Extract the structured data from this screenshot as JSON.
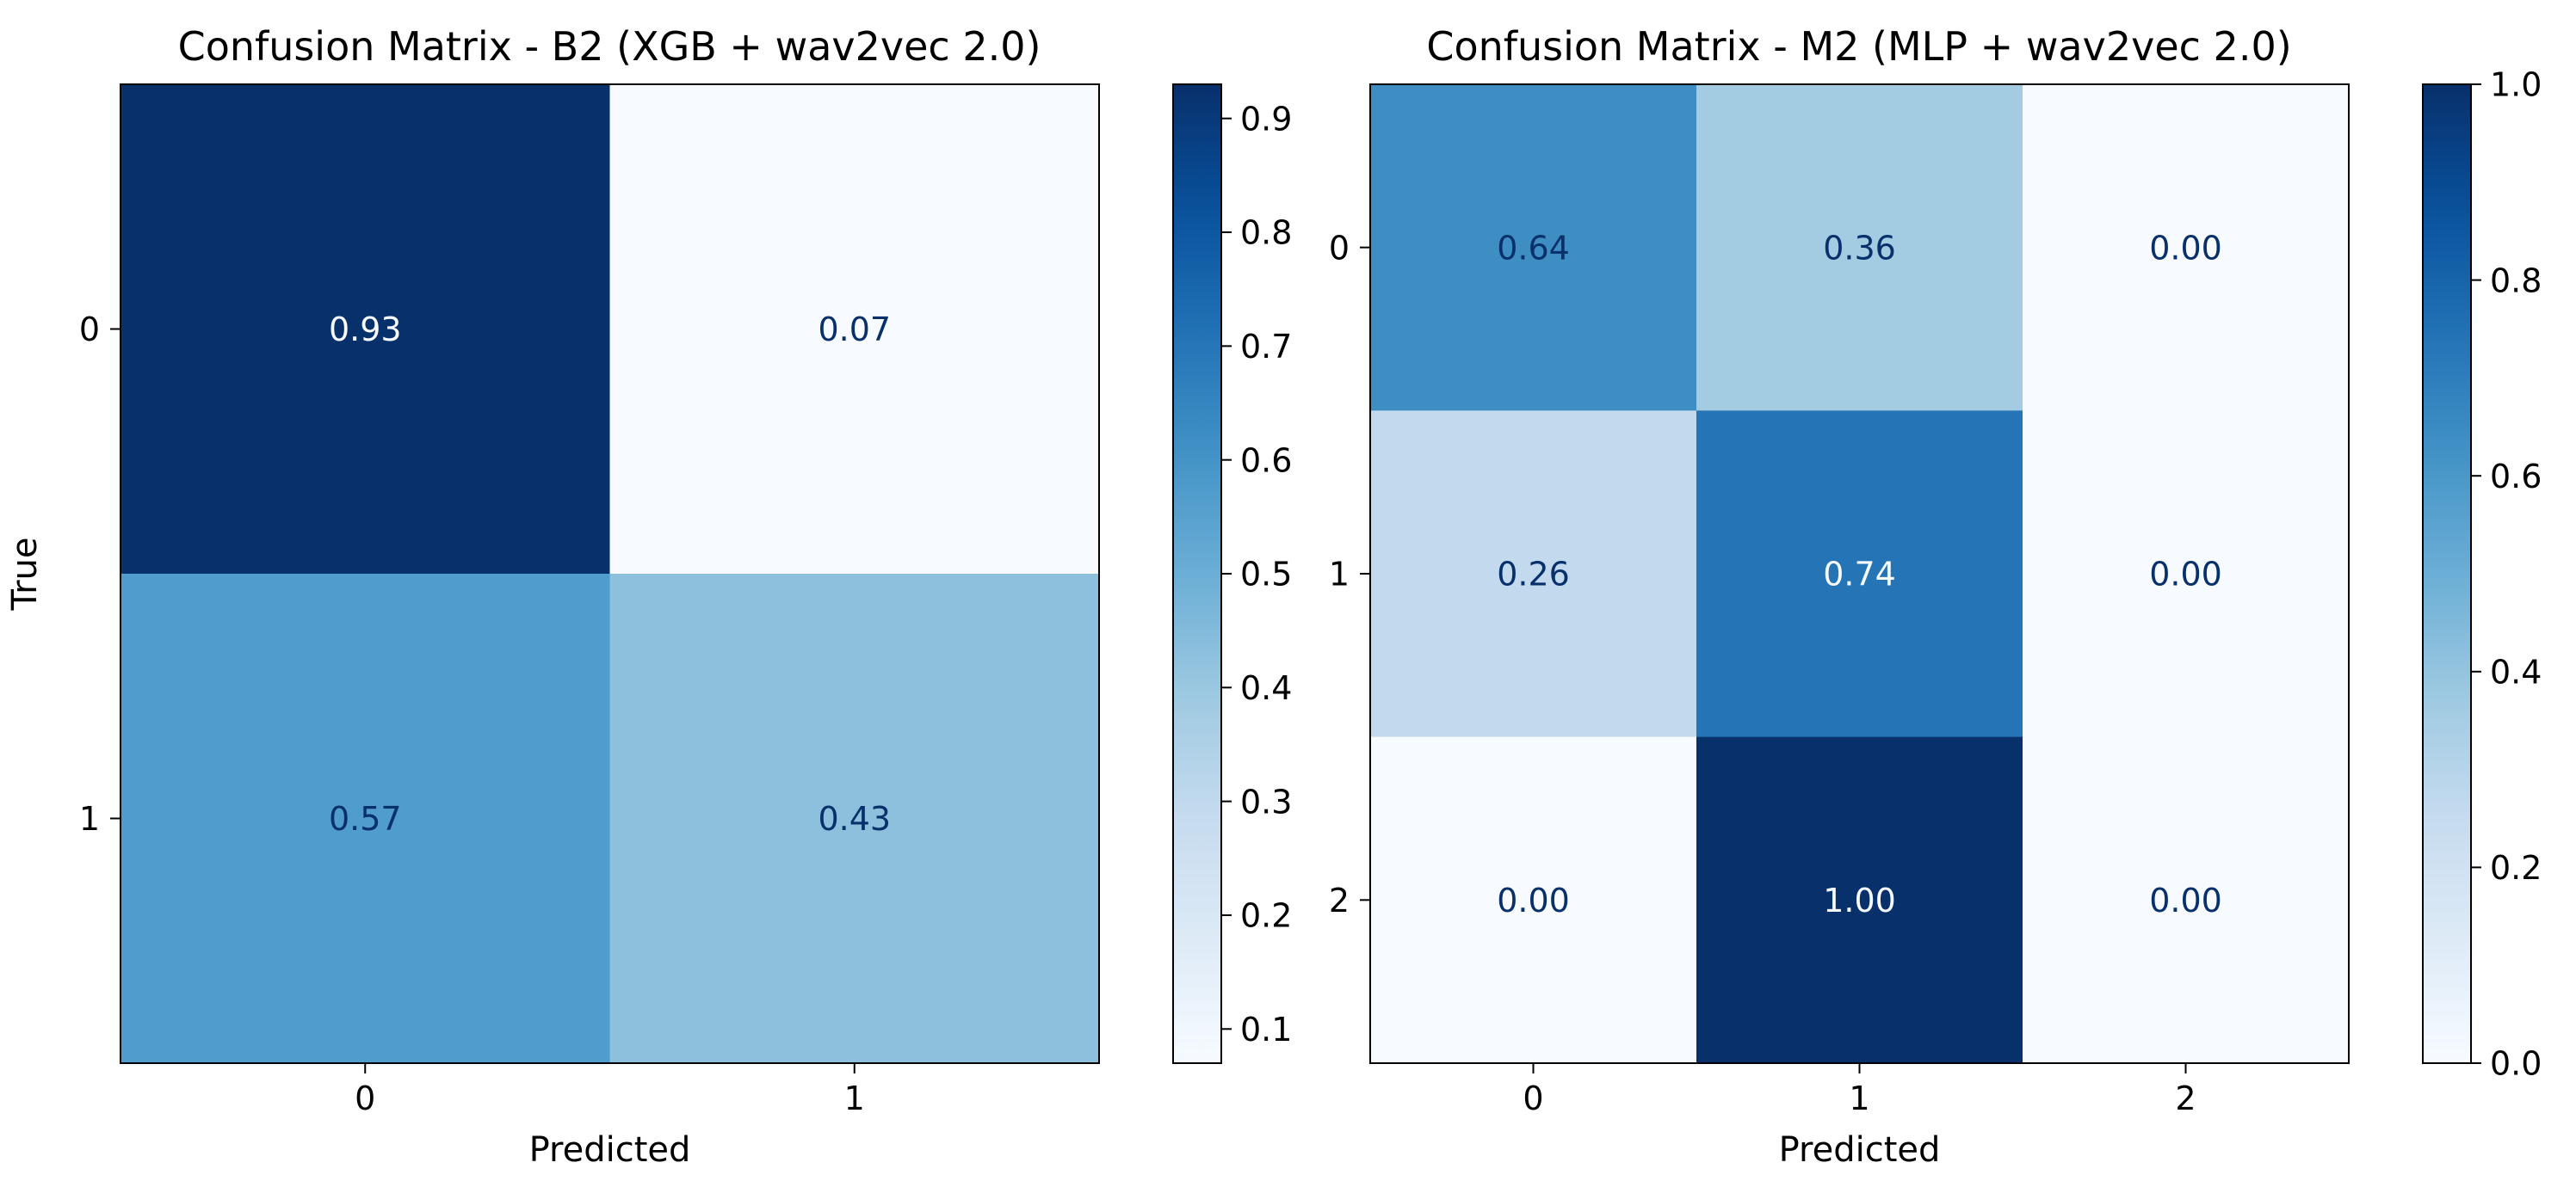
{
  "chart_data": [
    {
      "type": "heatmap",
      "title": "Confusion Matrix - B2 (XGB + wav2vec 2.0)",
      "xlabel": "Predicted",
      "ylabel": "True",
      "x_ticks": [
        "0",
        "1"
      ],
      "y_ticks": [
        "0",
        "1"
      ],
      "cell_labels": [
        [
          "0.93",
          "0.07"
        ],
        [
          "0.57",
          "0.43"
        ]
      ],
      "values": [
        [
          0.93,
          0.07
        ],
        [
          0.57,
          0.43
        ]
      ],
      "colormap": "Blues",
      "colorbar": {
        "range": [
          0.07,
          0.93
        ],
        "ticks": [
          0.1,
          0.2,
          0.3,
          0.4,
          0.5,
          0.6,
          0.7,
          0.8,
          0.9
        ],
        "tick_labels": [
          "0.1",
          "0.2",
          "0.3",
          "0.4",
          "0.5",
          "0.6",
          "0.7",
          "0.8",
          "0.9"
        ]
      }
    },
    {
      "type": "heatmap",
      "title": "Confusion Matrix - M2 (MLP + wav2vec 2.0)",
      "xlabel": "Predicted",
      "ylabel": "",
      "x_ticks": [
        "0",
        "1",
        "2"
      ],
      "y_ticks": [
        "0",
        "1",
        "2"
      ],
      "cell_labels": [
        [
          "0.64",
          "0.36",
          "0.00"
        ],
        [
          "0.26",
          "0.74",
          "0.00"
        ],
        [
          "0.00",
          "1.00",
          "0.00"
        ]
      ],
      "values": [
        [
          0.64,
          0.36,
          0.0
        ],
        [
          0.26,
          0.74,
          0.0
        ],
        [
          0.0,
          1.0,
          0.0
        ]
      ],
      "colormap": "Blues",
      "colorbar": {
        "range": [
          0.0,
          1.0
        ],
        "ticks": [
          0.0,
          0.2,
          0.4,
          0.6,
          0.8,
          1.0
        ],
        "tick_labels": [
          "0.0",
          "0.2",
          "0.4",
          "0.6",
          "0.8",
          "1.0"
        ]
      }
    }
  ]
}
